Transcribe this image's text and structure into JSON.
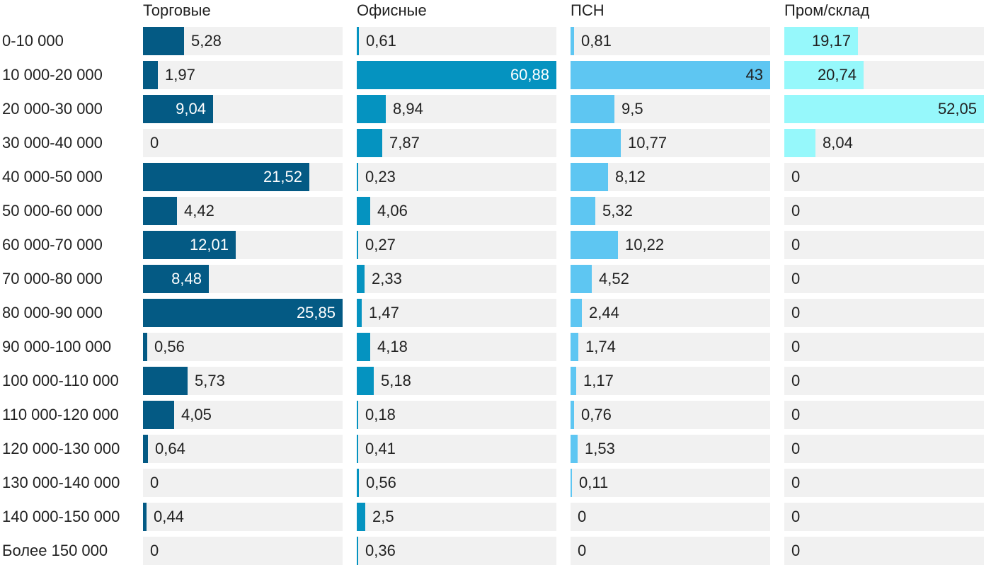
{
  "chart_data": {
    "type": "bar",
    "orientation": "horizontal",
    "layout": "small-multiples",
    "categories": [
      "0-10 000",
      "10 000-20 000",
      "20 000-30 000",
      "30 000-40 000",
      "40 000-50 000",
      "50 000-60 000",
      "60 000-70 000",
      "70 000-80 000",
      "80 000-90 000",
      "90 000-100 000",
      "100 000-110 000",
      "110 000-120 000",
      "120 000-130 000",
      "130 000-140 000",
      "140 000-150 000",
      "Более 150 000"
    ],
    "series": [
      {
        "name": "Торговые",
        "color": "#045a84",
        "values": [
          5.28,
          1.97,
          9.04,
          0,
          21.52,
          4.42,
          12.01,
          8.48,
          25.85,
          0.56,
          5.73,
          4.05,
          0.64,
          0,
          0.44,
          0
        ],
        "labels": [
          "5,28",
          "1,97",
          "9,04",
          "0",
          "21,52",
          "4,42",
          "12,01",
          "8,48",
          "25,85",
          "0,56",
          "5,73",
          "4,05",
          "0,64",
          "0",
          "0,44",
          "0"
        ],
        "max": 25.85
      },
      {
        "name": "Офисные",
        "color": "#0593c0",
        "values": [
          0.61,
          60.88,
          8.94,
          7.87,
          0.23,
          4.06,
          0.27,
          2.33,
          1.47,
          4.18,
          5.18,
          0.18,
          0.41,
          0.56,
          2.5,
          0.36
        ],
        "labels": [
          "0,61",
          "60,88",
          "8,94",
          "7,87",
          "0,23",
          "4,06",
          "0,27",
          "2,33",
          "1,47",
          "4,18",
          "5,18",
          "0,18",
          "0,41",
          "0,56",
          "2,5",
          "0,36"
        ],
        "max": 60.88
      },
      {
        "name": "ПСН",
        "color": "#5ec6f2",
        "values": [
          0.81,
          43,
          9.5,
          10.77,
          8.12,
          5.32,
          10.22,
          4.52,
          2.44,
          1.74,
          1.17,
          0.76,
          1.53,
          0.11,
          0,
          0
        ],
        "labels": [
          "0,81",
          "43",
          "9,5",
          "10,77",
          "8,12",
          "5,32",
          "10,22",
          "4,52",
          "2,44",
          "1,74",
          "1,17",
          "0,76",
          "1,53",
          "0,11",
          "0",
          "0"
        ],
        "max": 43
      },
      {
        "name": "Пром/склад",
        "color": "#96f8fb",
        "values": [
          19.17,
          20.74,
          52.05,
          8.04,
          0,
          0,
          0,
          0,
          0,
          0,
          0,
          0,
          0,
          0,
          0,
          0
        ],
        "labels": [
          "19,17",
          "20,74",
          "52,05",
          "8,04",
          "0",
          "0",
          "0",
          "0",
          "0",
          "0",
          "0",
          "0",
          "0",
          "0",
          "0",
          "0"
        ],
        "max": 52.05
      }
    ],
    "title": "",
    "xlabel": "",
    "ylabel": ""
  }
}
